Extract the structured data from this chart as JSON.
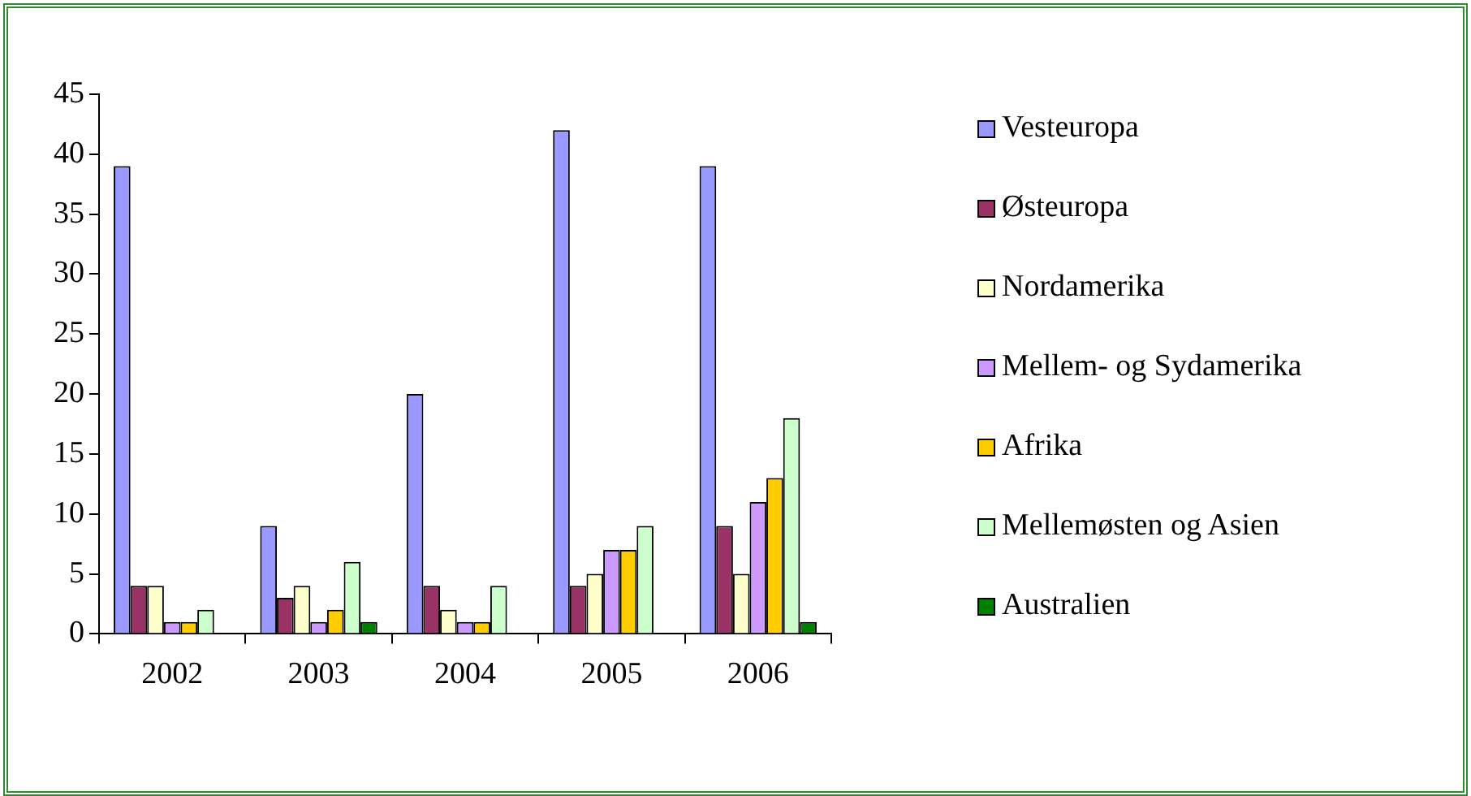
{
  "chart_data": {
    "type": "bar",
    "categories": [
      "2002",
      "2003",
      "2004",
      "2005",
      "2006"
    ],
    "series": [
      {
        "name": "Vesteuropa",
        "color": "#9999ff",
        "values": [
          39,
          9,
          20,
          42,
          39
        ]
      },
      {
        "name": "Østeuropa",
        "color": "#993366",
        "values": [
          4,
          3,
          4,
          4,
          9
        ]
      },
      {
        "name": "Nordamerika",
        "color": "#ffffcc",
        "values": [
          4,
          4,
          2,
          5,
          5
        ]
      },
      {
        "name": "Mellem- og Sydamerika",
        "color": "#cc99ff",
        "values": [
          1,
          1,
          1,
          7,
          11
        ]
      },
      {
        "name": "Afrika",
        "color": "#ffcc00",
        "values": [
          1,
          2,
          1,
          7,
          13
        ]
      },
      {
        "name": "Mellemøsten og Asien",
        "color": "#ccffcc",
        "values": [
          2,
          6,
          4,
          9,
          18
        ]
      },
      {
        "name": "Australien",
        "color": "#008000",
        "values": [
          0,
          1,
          0,
          0,
          1
        ]
      }
    ],
    "ylim": [
      0,
      45
    ],
    "yticks": [
      0,
      5,
      10,
      15,
      20,
      25,
      30,
      35,
      40,
      45
    ],
    "grid": false,
    "legend": "right"
  }
}
